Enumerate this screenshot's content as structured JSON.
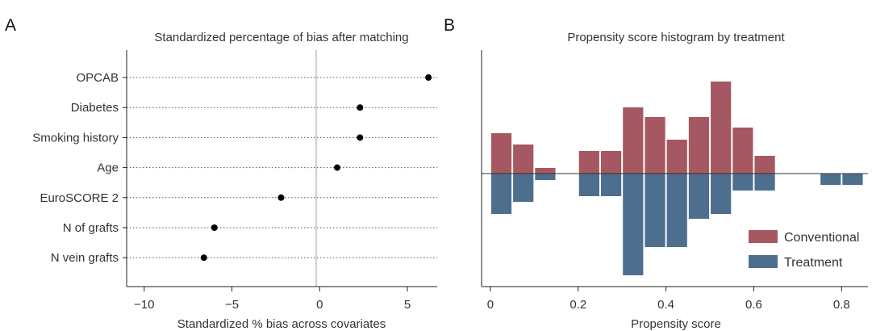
{
  "chart_data": [
    {
      "panel": "A",
      "type": "scatter",
      "title": "Standardized percentage of bias after matching",
      "xlabel": "Standardized % bias across covariates",
      "ylabel": "",
      "xlim": [
        -11,
        6.7
      ],
      "xticks": [
        -10,
        -5,
        0,
        5
      ],
      "xtick_labels": [
        "−10",
        "−5",
        "0",
        "5"
      ],
      "categories": [
        "OPCAB",
        "Diabetes",
        "Smoking history",
        "Age",
        "EuroSCORE 2",
        "N of grafts",
        "N vein grafts"
      ],
      "values": [
        6.2,
        2.3,
        2.3,
        1.0,
        -2.2,
        -6.0,
        -6.6
      ],
      "reference_line": 0,
      "grid": "dotted horizontal lines per category"
    },
    {
      "panel": "B",
      "type": "bar",
      "title": "Propensity score histogram by treatment",
      "xlabel": "Propensity score",
      "ylabel": "",
      "xlim": [
        -0.02,
        0.86
      ],
      "xticks": [
        0,
        0.2,
        0.4,
        0.6,
        0.8
      ],
      "xtick_labels": [
        "0",
        "0.2",
        "0.4",
        "0.6",
        "0.8"
      ],
      "bin_width": 0.05,
      "legend_position": "bottom-right",
      "series": [
        {
          "name": "Conventional",
          "color": "#a65862",
          "bins": [
            {
              "x": 0.025,
              "value": 5
            },
            {
              "x": 0.075,
              "value": 3.6
            },
            {
              "x": 0.125,
              "value": 0.7
            },
            {
              "x": 0.225,
              "value": 2.8
            },
            {
              "x": 0.275,
              "value": 2.8
            },
            {
              "x": 0.325,
              "value": 8.2
            },
            {
              "x": 0.375,
              "value": 7
            },
            {
              "x": 0.425,
              "value": 4.2
            },
            {
              "x": 0.475,
              "value": 7
            },
            {
              "x": 0.525,
              "value": 11.4
            },
            {
              "x": 0.575,
              "value": 5.7
            },
            {
              "x": 0.625,
              "value": 2.2
            }
          ]
        },
        {
          "name": "Treatment",
          "color": "#4e6e8e",
          "bins": [
            {
              "x": 0.025,
              "value": 5
            },
            {
              "x": 0.075,
              "value": 3.5
            },
            {
              "x": 0.125,
              "value": 0.8
            },
            {
              "x": 0.225,
              "value": 2.8
            },
            {
              "x": 0.275,
              "value": 2.8
            },
            {
              "x": 0.325,
              "value": 12.6
            },
            {
              "x": 0.375,
              "value": 9.1
            },
            {
              "x": 0.425,
              "value": 9.1
            },
            {
              "x": 0.475,
              "value": 5.6
            },
            {
              "x": 0.525,
              "value": 5.0
            },
            {
              "x": 0.575,
              "value": 2.1
            },
            {
              "x": 0.625,
              "value": 2.1
            },
            {
              "x": 0.775,
              "value": 1.4
            },
            {
              "x": 0.825,
              "value": 1.4
            }
          ]
        }
      ]
    }
  ],
  "labels": {
    "panel_a": "A",
    "panel_b": "B"
  }
}
